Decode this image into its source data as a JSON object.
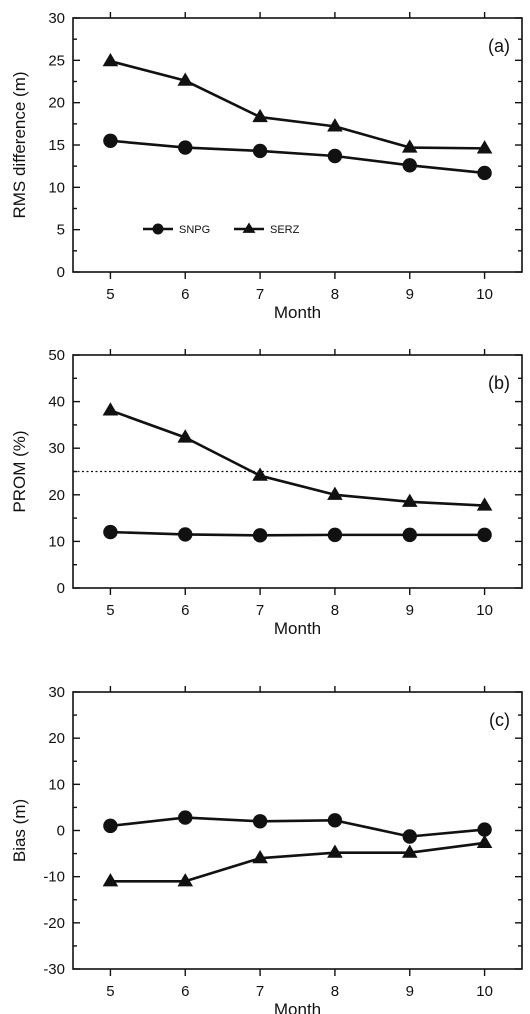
{
  "chart_data": [
    {
      "type": "line",
      "panel_label": "(a)",
      "xlabel": "Month",
      "ylabel": "RMS difference (m)",
      "x": [
        5,
        6,
        7,
        8,
        9,
        10
      ],
      "xlim": [
        4.5,
        10.5
      ],
      "ylim": [
        0,
        30
      ],
      "yticks": [
        0,
        5,
        10,
        15,
        20,
        25,
        30
      ],
      "xticks": [
        5,
        6,
        7,
        8,
        9,
        10
      ],
      "legend": {
        "placement": "bottom-left",
        "entries": [
          "SNPG",
          "SERZ"
        ]
      },
      "series": [
        {
          "name": "SNPG",
          "marker": "circle",
          "values": [
            15.5,
            14.7,
            14.3,
            13.7,
            12.6,
            11.7
          ]
        },
        {
          "name": "SERZ",
          "marker": "triangle",
          "values": [
            24.9,
            22.6,
            18.3,
            17.2,
            14.7,
            14.6
          ]
        }
      ]
    },
    {
      "type": "line",
      "panel_label": "(b)",
      "xlabel": "Month",
      "ylabel": "PROM (%)",
      "x": [
        5,
        6,
        7,
        8,
        9,
        10
      ],
      "xlim": [
        4.5,
        10.5
      ],
      "ylim": [
        0,
        50
      ],
      "yticks": [
        0,
        10,
        20,
        30,
        40,
        50
      ],
      "xticks": [
        5,
        6,
        7,
        8,
        9,
        10
      ],
      "reference_line": {
        "y": 25,
        "style": "dotted"
      },
      "series": [
        {
          "name": "SNPG",
          "marker": "circle",
          "values": [
            12.0,
            11.5,
            11.3,
            11.4,
            11.4,
            11.4
          ]
        },
        {
          "name": "SERZ",
          "marker": "triangle",
          "values": [
            38.1,
            32.3,
            24.1,
            20.0,
            18.5,
            17.7
          ]
        }
      ]
    },
    {
      "type": "line",
      "panel_label": "(c)",
      "xlabel": "Month",
      "ylabel": "Bias (m)",
      "x": [
        5,
        6,
        7,
        8,
        9,
        10
      ],
      "xlim": [
        4.5,
        10.5
      ],
      "ylim": [
        -30,
        30
      ],
      "yticks": [
        -30,
        -20,
        -10,
        0,
        10,
        20,
        30
      ],
      "xticks": [
        5,
        6,
        7,
        8,
        9,
        10
      ],
      "series": [
        {
          "name": "SNPG",
          "marker": "circle",
          "values": [
            1.0,
            2.8,
            2.0,
            2.2,
            -1.3,
            0.2
          ]
        },
        {
          "name": "SERZ",
          "marker": "triangle",
          "values": [
            -11.0,
            -11.0,
            -6.0,
            -4.8,
            -4.8,
            -2.7
          ]
        }
      ]
    }
  ]
}
